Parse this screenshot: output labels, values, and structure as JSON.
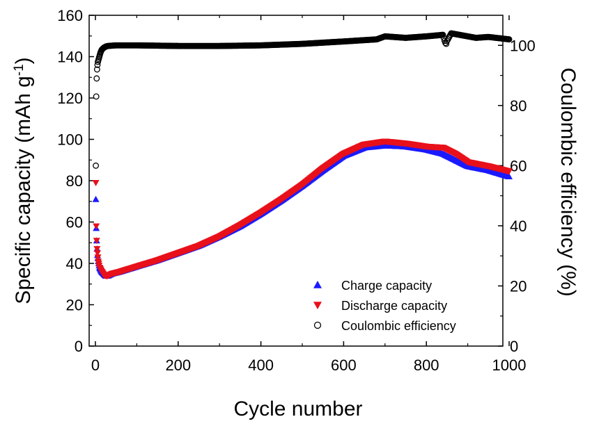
{
  "chart_data": {
    "type": "scatter",
    "xlabel": "Cycle number",
    "ylabel_left": "Specific capacity (mAh g",
    "ylabel_left_sup": "-1",
    "ylabel_left_close": ")",
    "ylabel_right": "Coulombic efficiency (%)",
    "xlim": [
      0,
      1000
    ],
    "ylim_left": [
      0,
      160
    ],
    "ylim_right": [
      0,
      110
    ],
    "x_ticks": [
      0,
      200,
      400,
      600,
      800,
      1000
    ],
    "y_left_ticks": [
      0,
      20,
      40,
      60,
      80,
      100,
      120,
      140,
      160
    ],
    "y_right_ticks": [
      0,
      20,
      40,
      60,
      80,
      100
    ],
    "legend_position": "bottom-right",
    "series": [
      {
        "name": "Charge capacity",
        "axis": "left",
        "marker": "triangle-up",
        "color": "#1a1aff",
        "points": [
          [
            1,
            71
          ],
          [
            2,
            57
          ],
          [
            3,
            51
          ],
          [
            4,
            47
          ],
          [
            5,
            44
          ],
          [
            7,
            41
          ],
          [
            10,
            38
          ],
          [
            15,
            36
          ],
          [
            20,
            35
          ],
          [
            25,
            34
          ],
          [
            30,
            34
          ],
          [
            40,
            35
          ],
          [
            60,
            36
          ],
          [
            100,
            38.5
          ],
          [
            150,
            41.5
          ],
          [
            200,
            45
          ],
          [
            250,
            48.5
          ],
          [
            300,
            53
          ],
          [
            350,
            58
          ],
          [
            400,
            64
          ],
          [
            450,
            70.5
          ],
          [
            500,
            77.5
          ],
          [
            550,
            85
          ],
          [
            600,
            92
          ],
          [
            650,
            96
          ],
          [
            700,
            97
          ],
          [
            750,
            96.5
          ],
          [
            800,
            95
          ],
          [
            840,
            93
          ],
          [
            870,
            90
          ],
          [
            900,
            87
          ],
          [
            950,
            85
          ],
          [
            1000,
            82
          ]
        ]
      },
      {
        "name": "Discharge capacity",
        "axis": "left",
        "marker": "triangle-down",
        "color": "#e8101a",
        "points": [
          [
            1,
            79
          ],
          [
            2,
            58
          ],
          [
            3,
            51
          ],
          [
            4,
            47
          ],
          [
            5,
            45
          ],
          [
            7,
            41
          ],
          [
            10,
            38
          ],
          [
            15,
            36
          ],
          [
            20,
            34.5
          ],
          [
            25,
            34
          ],
          [
            30,
            34
          ],
          [
            40,
            35
          ],
          [
            60,
            36
          ],
          [
            100,
            38.5
          ],
          [
            150,
            41.5
          ],
          [
            200,
            45
          ],
          [
            250,
            48.5
          ],
          [
            300,
            53
          ],
          [
            350,
            58.5
          ],
          [
            400,
            64.5
          ],
          [
            450,
            71
          ],
          [
            500,
            78
          ],
          [
            550,
            86
          ],
          [
            600,
            93
          ],
          [
            650,
            97.5
          ],
          [
            700,
            99
          ],
          [
            750,
            98
          ],
          [
            800,
            96.5
          ],
          [
            840,
            96
          ],
          [
            870,
            93
          ],
          [
            900,
            89
          ],
          [
            950,
            87
          ],
          [
            1000,
            84.5
          ]
        ]
      },
      {
        "name": "Coulombic efficiency",
        "axis": "right",
        "marker": "circle-open",
        "color": "#000000",
        "points": [
          [
            1,
            60
          ],
          [
            2,
            83
          ],
          [
            3,
            89
          ],
          [
            4,
            92
          ],
          [
            5,
            93.5
          ],
          [
            6,
            94.5
          ],
          [
            8,
            95.5
          ],
          [
            10,
            96.5
          ],
          [
            12,
            97.5
          ],
          [
            15,
            98.5
          ],
          [
            20,
            99.2
          ],
          [
            25,
            99.6
          ],
          [
            30,
            99.8
          ],
          [
            50,
            100
          ],
          [
            100,
            100
          ],
          [
            200,
            99.8
          ],
          [
            300,
            99.8
          ],
          [
            400,
            100
          ],
          [
            500,
            100.5
          ],
          [
            600,
            101.3
          ],
          [
            680,
            102
          ],
          [
            700,
            103
          ],
          [
            750,
            102.5
          ],
          [
            800,
            103
          ],
          [
            840,
            103.5
          ],
          [
            845,
            101
          ],
          [
            848,
            100.5
          ],
          [
            850,
            101.5
          ],
          [
            860,
            104
          ],
          [
            880,
            103.5
          ],
          [
            900,
            103
          ],
          [
            920,
            102.5
          ],
          [
            950,
            102.8
          ],
          [
            1000,
            102
          ]
        ]
      }
    ]
  }
}
